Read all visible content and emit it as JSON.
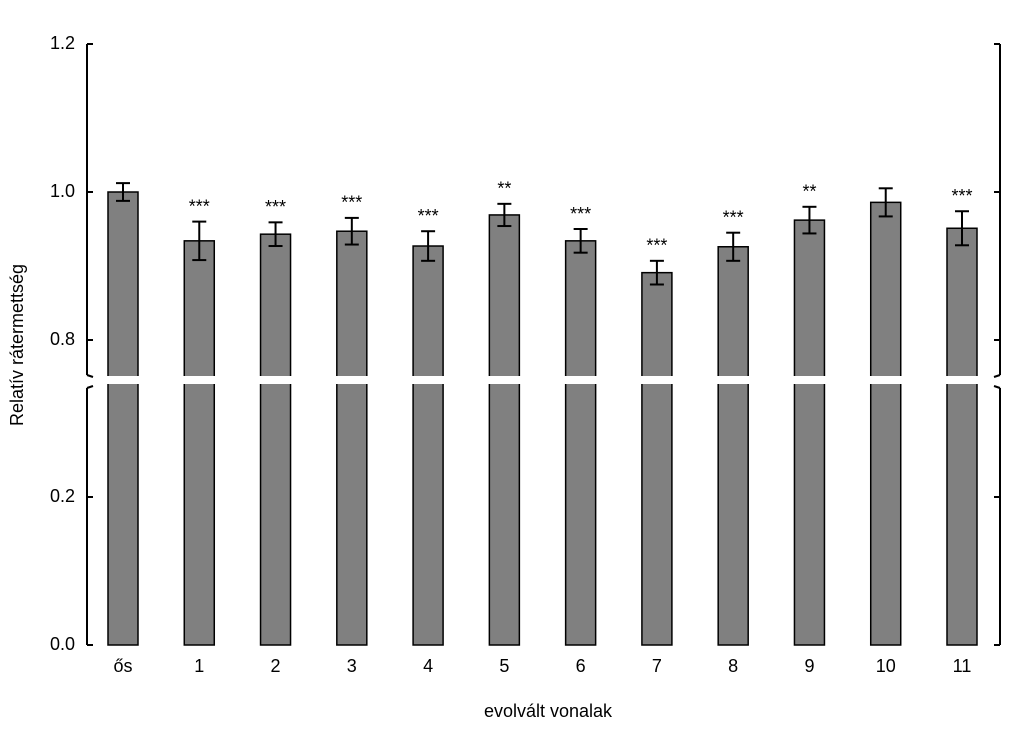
{
  "chart_data": {
    "type": "bar",
    "x_label": "evolvált vonalak",
    "y_label": "Relatív rátermettség",
    "categories": [
      "ős",
      "1",
      "2",
      "3",
      "4",
      "5",
      "6",
      "7",
      "8",
      "9",
      "10",
      "11"
    ],
    "values": [
      1.0,
      0.934,
      0.943,
      0.947,
      0.927,
      0.969,
      0.934,
      0.891,
      0.926,
      0.962,
      0.986,
      0.951
    ],
    "errors": [
      0.012,
      0.026,
      0.016,
      0.018,
      0.02,
      0.015,
      0.016,
      0.016,
      0.019,
      0.018,
      0.019,
      0.023
    ],
    "significance": [
      null,
      "***",
      "***",
      "***",
      "***",
      "**",
      "***",
      "***",
      "***",
      "**",
      null,
      "***"
    ],
    "color": "#808080",
    "axis_break": {
      "lower": {
        "ylim": [
          0,
          0.35
        ],
        "yticks": [
          {
            "value": 0,
            "label": "0.0"
          },
          0.2
        ]
      },
      "upper": {
        "ylim": [
          0.75,
          1.2
        ],
        "yticks": [
          0.8,
          {
            "value": 1.0,
            "label": "1.0"
          },
          1.2
        ]
      }
    }
  }
}
